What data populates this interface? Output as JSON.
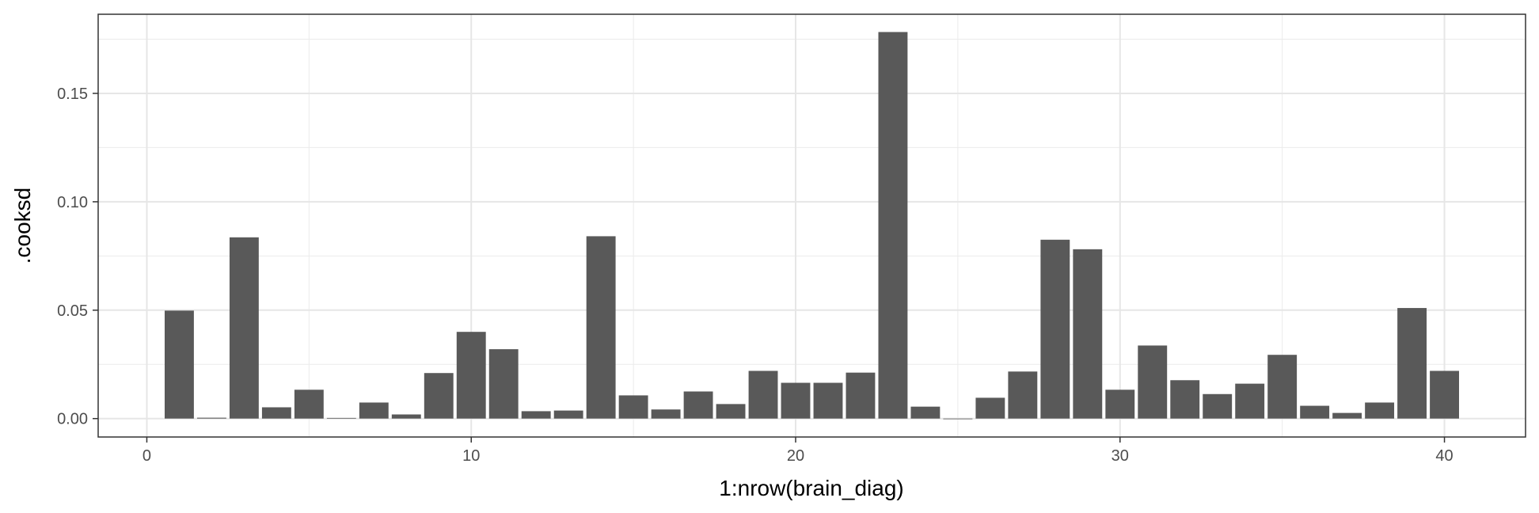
{
  "chart_data": {
    "type": "bar",
    "title": "",
    "xlabel": "1:nrow(brain_diag)",
    "ylabel": ".cooksd",
    "xlim": [
      -1.5,
      42.5
    ],
    "ylim": [
      -0.0085,
      0.1865
    ],
    "x_ticks": [
      0,
      10,
      20,
      30,
      40
    ],
    "y_ticks": [
      0.0,
      0.05,
      0.1,
      0.15
    ],
    "x_tick_labels": [
      "0",
      "10",
      "20",
      "30",
      "40"
    ],
    "y_tick_labels": [
      "0.00",
      "0.05",
      "0.10",
      "0.15"
    ],
    "grid": true,
    "bar_color": "#595959",
    "x": [
      1,
      2,
      3,
      4,
      5,
      6,
      7,
      8,
      9,
      10,
      11,
      12,
      13,
      14,
      15,
      16,
      17,
      18,
      19,
      20,
      21,
      22,
      23,
      24,
      25,
      26,
      27,
      28,
      29,
      30,
      31,
      32,
      33,
      34,
      35,
      36,
      37,
      38,
      39,
      40
    ],
    "values": [
      0.0498,
      0.0004,
      0.0836,
      0.0052,
      0.0133,
      0.0003,
      0.0074,
      0.0019,
      0.021,
      0.04,
      0.032,
      0.0034,
      0.0037,
      0.0841,
      0.0107,
      0.0042,
      0.0125,
      0.0067,
      0.022,
      0.0165,
      0.0165,
      0.0212,
      0.1783,
      0.0055,
      0.0,
      0.0096,
      0.0217,
      0.0825,
      0.0781,
      0.0133,
      0.0337,
      0.0177,
      0.0113,
      0.0161,
      0.0294,
      0.0059,
      0.0026,
      0.0074,
      0.051,
      0.022
    ]
  }
}
